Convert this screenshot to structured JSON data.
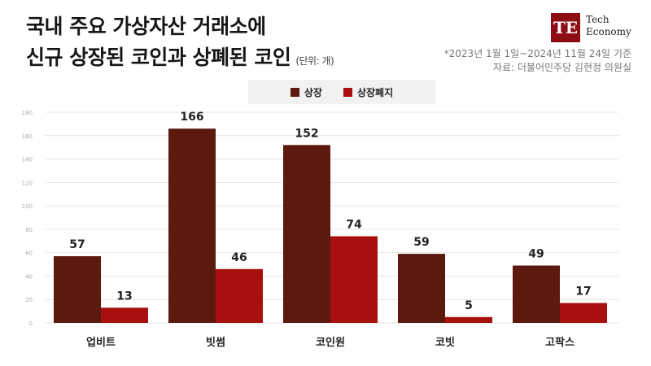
{
  "header": {
    "title_line1": "국내 주요 가상자산 거래소에",
    "title_line2": "신규 상장된 코인과 상폐된 코인",
    "unit": "(단위: 개)",
    "note_line1": "*2023년 1월 1일~2024년 11월 24일 기준",
    "note_line2": "자료: 더불어민주당 김현정 의원실"
  },
  "logo": {
    "mark": "TE",
    "line1": "Tech",
    "line2": "Economy",
    "color": "#8c0e14"
  },
  "chart_data": {
    "type": "bar",
    "categories": [
      "업비트",
      "빗썸",
      "코인원",
      "코빗",
      "고팍스"
    ],
    "series": [
      {
        "name": "상장",
        "values": [
          57,
          166,
          152,
          59,
          49
        ],
        "color": "#5c1a0e"
      },
      {
        "name": "상장폐지",
        "values": [
          13,
          46,
          74,
          5,
          17
        ],
        "color": "#a80f0f"
      }
    ],
    "ylim": [
      0,
      180
    ],
    "yticks": [
      0,
      20,
      40,
      60,
      80,
      100,
      120,
      140,
      160,
      180
    ],
    "grid": true,
    "legend_position": "top-center"
  }
}
